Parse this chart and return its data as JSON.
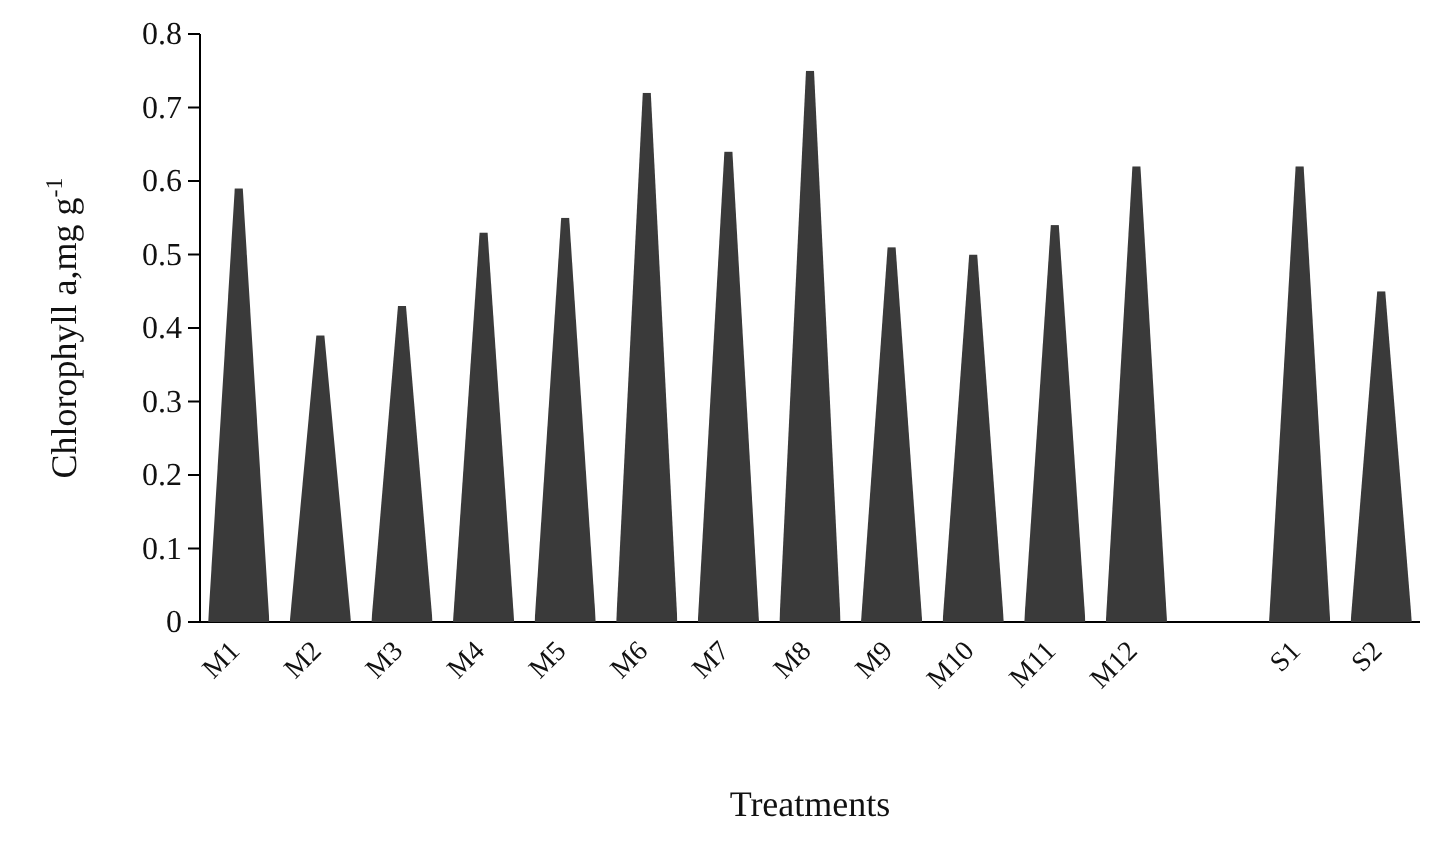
{
  "chart_data": {
    "type": "bar",
    "xlabel": "Treatments",
    "ylabel": "Chlorophyll a,mg g$^{-1}$",
    "categories": [
      "M1",
      "M2",
      "M3",
      "M4",
      "M5",
      "M6",
      "M7",
      "M8",
      "M9",
      "M10",
      "M11",
      "M12",
      null,
      "S1",
      "S2"
    ],
    "values": [
      0.59,
      0.39,
      0.43,
      0.53,
      0.55,
      0.72,
      0.64,
      0.75,
      0.51,
      0.5,
      0.54,
      0.62,
      null,
      0.62,
      0.45
    ],
    "color": "#3a3a3a",
    "ylim": [
      0,
      0.8
    ],
    "yticks": [
      0,
      0.1,
      0.2,
      0.3,
      0.4,
      0.5,
      0.6,
      0.7,
      0.8
    ],
    "grid": false
  }
}
